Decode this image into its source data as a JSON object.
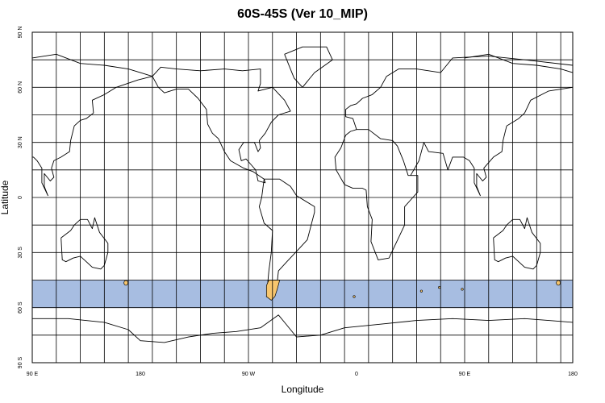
{
  "map": {
    "title": "60S-45S (Ver 10_MIP)",
    "xlabel": "Longitude",
    "ylabel": "Latitude",
    "x_ticks": [
      {
        "label": "90 E",
        "lon": 90
      },
      {
        "label": "180",
        "lon": 180
      },
      {
        "label": "90 W",
        "lon": 270
      },
      {
        "label": "0",
        "lon": 360
      },
      {
        "label": "90 E",
        "lon": 450
      },
      {
        "label": "180",
        "lon": 540
      }
    ],
    "y_ticks": [
      {
        "label": "90 N",
        "lat": 90
      },
      {
        "label": "60 N",
        "lat": 60
      },
      {
        "label": "30 N",
        "lat": 30
      },
      {
        "label": "0",
        "lat": 0
      },
      {
        "label": "30 S",
        "lat": -30
      },
      {
        "label": "60 S",
        "lat": -60
      },
      {
        "label": "90 S",
        "lat": -90
      }
    ],
    "lon_range": [
      90,
      540
    ],
    "lat_range": [
      -90,
      90
    ],
    "gridlines_lon_step": 20,
    "gridlines_lat_step": 15,
    "highlight_band": {
      "lat_min": -60,
      "lat_max": -45,
      "color": "#a7bde1"
    },
    "highlight_land_color": "#f7c66e",
    "coastline_color": "#000000"
  }
}
